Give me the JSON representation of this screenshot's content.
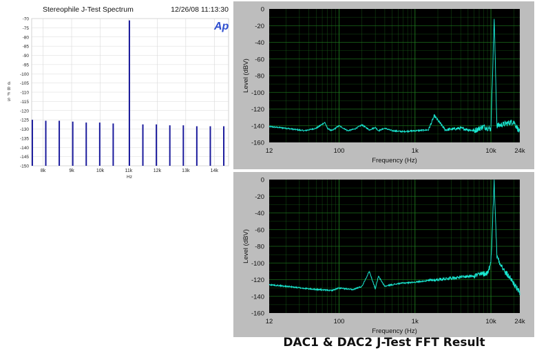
{
  "caption": "DAC1 & DAC2 J-Test FFT Result",
  "colors": {
    "ap_line": "#1a1a9c",
    "fft_plot_bg": "#000000",
    "fft_grid": "#1e7a1e",
    "fft_trace": "#19e6cf",
    "fft_frame": "#bdbdbd"
  },
  "chart_data": [
    {
      "type": "bar",
      "title": "Stereophile J-Test Spectrum",
      "timestamp": "12/26/08 11:13:30",
      "logo": "Ap",
      "ylabel": "dBFS",
      "xlabel": "Hz",
      "ylim": [
        -150,
        -70
      ],
      "xlim": [
        7600,
        14500
      ],
      "yticks": [
        -70,
        -75,
        -80,
        -85,
        -90,
        -95,
        -100,
        -105,
        -110,
        -115,
        -120,
        -125,
        -130,
        -135,
        -140,
        -145,
        -150
      ],
      "xticks": [
        {
          "value": 8000,
          "label": "8k"
        },
        {
          "value": 9000,
          "label": "9k"
        },
        {
          "value": 10000,
          "label": "10k"
        },
        {
          "value": 11000,
          "label": "11k"
        },
        {
          "value": 12000,
          "label": "12k"
        },
        {
          "value": 13000,
          "label": "13k"
        },
        {
          "value": 14000,
          "label": "14k"
        }
      ],
      "grid": true,
      "bars": [
        {
          "x": 7623,
          "y": -125
        },
        {
          "x": 8095,
          "y": -125.5
        },
        {
          "x": 8567,
          "y": -125.5
        },
        {
          "x": 9040,
          "y": -126
        },
        {
          "x": 9512,
          "y": -126.5
        },
        {
          "x": 9985,
          "y": -126.5
        },
        {
          "x": 10457,
          "y": -127
        },
        {
          "x": 11025,
          "y": -71
        },
        {
          "x": 11497,
          "y": -127.5
        },
        {
          "x": 11970,
          "y": -127.5
        },
        {
          "x": 12442,
          "y": -128
        },
        {
          "x": 12915,
          "y": -128
        },
        {
          "x": 13387,
          "y": -128.5
        },
        {
          "x": 13860,
          "y": -128.5
        },
        {
          "x": 14332,
          "y": -128.5
        }
      ]
    },
    {
      "type": "line",
      "xscale": "log",
      "ylabel": "Level (dBV)",
      "xlabel": "Frequency (Hz)",
      "xlim": [
        12,
        24000
      ],
      "ylim": [
        -160,
        0
      ],
      "yticks": [
        0,
        -20,
        -40,
        -60,
        -80,
        -100,
        -120,
        -140,
        -160
      ],
      "xticks": [
        {
          "value": 12,
          "label": "12"
        },
        {
          "value": 100,
          "label": "100"
        },
        {
          "value": 1000,
          "label": "1k"
        },
        {
          "value": 10000,
          "label": "10k"
        },
        {
          "value": 24000,
          "label": "24k"
        }
      ],
      "grid": true,
      "series": [
        {
          "x": [
            12,
            20,
            35,
            50,
            65,
            70,
            80,
            100,
            130,
            160,
            200,
            250,
            300,
            330,
            400,
            500,
            700,
            1000,
            1500,
            1800,
            2500,
            4000,
            6000,
            8000,
            10000,
            11025,
            12000,
            15000,
            20000,
            24000
          ],
          "y": [
            -141,
            -143,
            -146,
            -143,
            -136,
            -143,
            -146,
            -140,
            -146,
            -144,
            -139,
            -145,
            -142,
            -146,
            -143,
            -146,
            -147,
            -146,
            -145,
            -128,
            -145,
            -143,
            -146,
            -141,
            -144,
            -10,
            -140,
            -138,
            -135,
            -148
          ]
        }
      ]
    },
    {
      "type": "line",
      "xscale": "log",
      "ylabel": "Level (dBV)",
      "xlabel": "Frequency (Hz)",
      "xlim": [
        12,
        24000
      ],
      "ylim": [
        -160,
        0
      ],
      "yticks": [
        0,
        -20,
        -40,
        -60,
        -80,
        -100,
        -120,
        -140,
        -160
      ],
      "xticks": [
        {
          "value": 12,
          "label": "12"
        },
        {
          "value": 100,
          "label": "100"
        },
        {
          "value": 1000,
          "label": "1k"
        },
        {
          "value": 10000,
          "label": "10k"
        },
        {
          "value": 24000,
          "label": "24k"
        }
      ],
      "grid": true,
      "series": [
        {
          "x": [
            12,
            20,
            40,
            80,
            100,
            150,
            200,
            250,
            300,
            330,
            400,
            500,
            700,
            1000,
            1500,
            2000,
            3000,
            5000,
            7000,
            9000,
            10000,
            11025,
            12000,
            15000,
            18000,
            24000
          ],
          "y": [
            -126,
            -128,
            -131,
            -133,
            -130,
            -132,
            -128,
            -110,
            -131,
            -116,
            -128,
            -126,
            -124,
            -123,
            -121,
            -120,
            -118,
            -116,
            -114,
            -112,
            -100,
            -2,
            -92,
            -110,
            -118,
            -136
          ]
        }
      ]
    }
  ]
}
